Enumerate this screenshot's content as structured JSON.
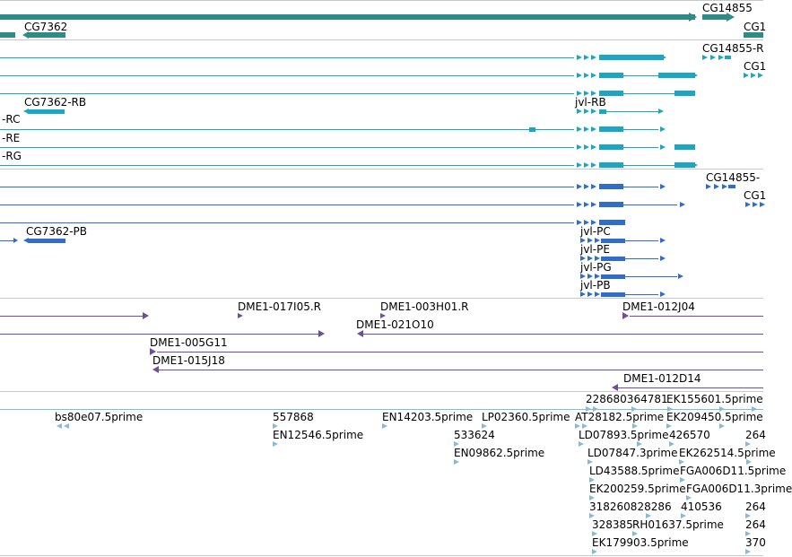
{
  "colors": {
    "gene": "#2e8b87",
    "transcript": "#1ba7c4",
    "protein": "#2f6ccb",
    "clone": "#6d4f9e",
    "est": "#87b9d9",
    "separator": "#c8c8c8"
  },
  "tracks": {
    "genes": [
      "CG14855",
      "CG7362",
      "CG1"
    ],
    "transcripts": [
      "CG14855-R",
      "CG1",
      "CG7362-RB",
      "jvl-RB",
      "-RC",
      "-RE",
      "-RG"
    ],
    "proteins": [
      "CG14855-",
      "CG1",
      "CG7362-PB",
      "jvl-PC",
      "jvl-PE",
      "jvl-PG",
      "jvl-PB"
    ],
    "clones": [
      "DME1-017I05.R",
      "DME1-003H01.R",
      "DME1-012J04",
      "DME1-021O10",
      "DME1-005G11",
      "DME1-015J18",
      "DME1-012D14"
    ],
    "ests": [
      "228680364781",
      "EK155601.5prime",
      "bs80e07.5prime",
      "557868",
      "EN14203.5prime",
      "LP02360.5prime",
      "AT28182.5prime",
      "EK209450.5prime",
      "EN12546.5prime",
      "533624",
      "LD07893.5prime",
      "426570",
      "264",
      "EN09862.5prime",
      "LD07847.3prime",
      "EK262514.5prime",
      "LD43588.5prime",
      "FGA006D11.5prime",
      "EK200259.5prime",
      "FGA006D11.3prime",
      "318260828286",
      "410536",
      "264",
      "328385",
      "RH01637.5prime",
      "264",
      "EK179903.5prime",
      "370"
    ]
  }
}
